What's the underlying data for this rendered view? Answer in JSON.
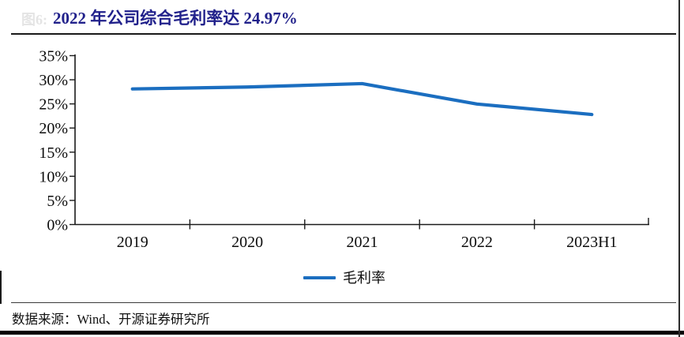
{
  "figure": {
    "faint_label": "图6:",
    "title": "2022 年公司综合毛利率达 24.97%",
    "source_note": "数据来源：Wind、开源证券研究所"
  },
  "chart_data": {
    "type": "line",
    "categories": [
      "2019",
      "2020",
      "2021",
      "2022",
      "2023H1"
    ],
    "series": [
      {
        "name": "毛利率",
        "values": [
          28.1,
          28.5,
          29.2,
          24.97,
          22.8
        ]
      }
    ],
    "title": "2022 年公司综合毛利率达 24.97%",
    "xlabel": "",
    "ylabel": "",
    "ylim": [
      0,
      35
    ],
    "ytick_step": 5,
    "ytick_labels": [
      "0%",
      "5%",
      "10%",
      "15%",
      "20%",
      "25%",
      "30%",
      "35%"
    ],
    "grid": false,
    "legend_position": "bottom",
    "line_color": "#1B6EC0"
  },
  "colors": {
    "title": "#21218B",
    "line": "#1B6EC0",
    "axis": "#1a1a1a",
    "watermark": "#e4e4e4"
  }
}
